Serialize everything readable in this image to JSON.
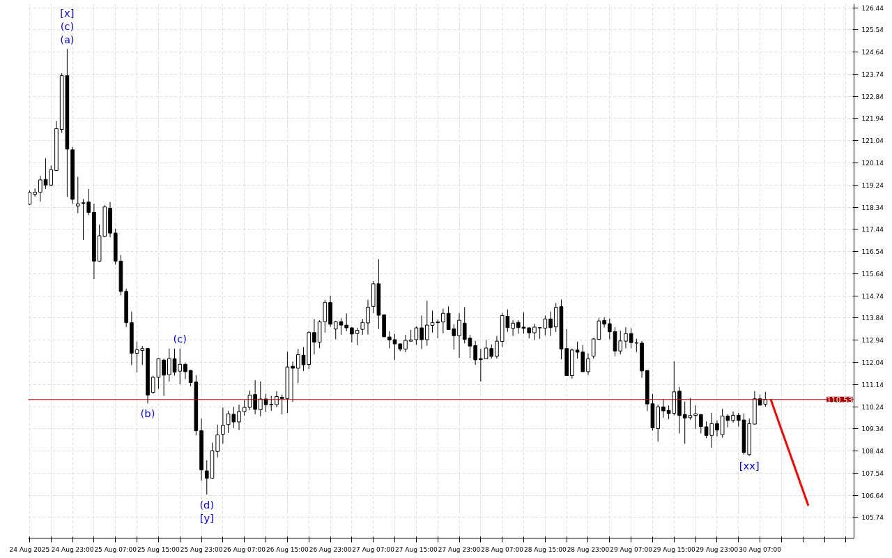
{
  "chart_data": {
    "type": "candlestick",
    "x": [
      "2025-08-24T15:00",
      "2025-08-24T16:00",
      "2025-08-24T17:00",
      "2025-08-24T18:00",
      "2025-08-24T19:00",
      "2025-08-24T20:00",
      "2025-08-24T21:00",
      "2025-08-24T22:00",
      "2025-08-24T23:00",
      "2025-08-25T00:00",
      "2025-08-25T01:00",
      "2025-08-25T02:00",
      "2025-08-25T03:00",
      "2025-08-25T04:00",
      "2025-08-25T05:00",
      "2025-08-25T06:00",
      "2025-08-25T07:00",
      "2025-08-25T08:00",
      "2025-08-25T09:00",
      "2025-08-25T10:00",
      "2025-08-25T11:00",
      "2025-08-25T12:00",
      "2025-08-25T13:00",
      "2025-08-25T14:00",
      "2025-08-25T15:00",
      "2025-08-25T16:00",
      "2025-08-25T17:00",
      "2025-08-25T18:00",
      "2025-08-25T19:00",
      "2025-08-25T20:00",
      "2025-08-25T21:00",
      "2025-08-25T22:00",
      "2025-08-25T23:00",
      "2025-08-26T00:00",
      "2025-08-26T01:00",
      "2025-08-26T02:00",
      "2025-08-26T03:00",
      "2025-08-26T04:00",
      "2025-08-26T05:00",
      "2025-08-26T06:00",
      "2025-08-26T07:00",
      "2025-08-26T08:00",
      "2025-08-26T09:00",
      "2025-08-26T10:00",
      "2025-08-26T11:00",
      "2025-08-26T12:00",
      "2025-08-26T13:00",
      "2025-08-26T14:00",
      "2025-08-26T15:00",
      "2025-08-26T16:00",
      "2025-08-26T17:00",
      "2025-08-26T18:00",
      "2025-08-26T19:00",
      "2025-08-26T20:00",
      "2025-08-26T21:00",
      "2025-08-26T22:00",
      "2025-08-26T23:00",
      "2025-08-27T00:00",
      "2025-08-27T01:00",
      "2025-08-27T02:00",
      "2025-08-27T03:00",
      "2025-08-27T04:00",
      "2025-08-27T05:00",
      "2025-08-27T06:00",
      "2025-08-27T07:00",
      "2025-08-27T08:00",
      "2025-08-27T09:00",
      "2025-08-27T10:00",
      "2025-08-27T11:00",
      "2025-08-27T12:00",
      "2025-08-27T13:00",
      "2025-08-27T14:00",
      "2025-08-27T15:00",
      "2025-08-27T16:00",
      "2025-08-27T17:00",
      "2025-08-27T18:00",
      "2025-08-27T19:00",
      "2025-08-27T20:00",
      "2025-08-27T21:00",
      "2025-08-27T22:00",
      "2025-08-27T23:00",
      "2025-08-28T00:00",
      "2025-08-28T01:00",
      "2025-08-28T02:00",
      "2025-08-28T03:00",
      "2025-08-28T04:00",
      "2025-08-28T05:00",
      "2025-08-28T06:00",
      "2025-08-28T07:00",
      "2025-08-28T08:00",
      "2025-08-28T09:00",
      "2025-08-28T10:00",
      "2025-08-28T11:00",
      "2025-08-28T12:00",
      "2025-08-28T13:00",
      "2025-08-28T14:00",
      "2025-08-28T15:00",
      "2025-08-28T16:00",
      "2025-08-28T17:00",
      "2025-08-28T18:00",
      "2025-08-28T19:00",
      "2025-08-28T20:00",
      "2025-08-28T21:00",
      "2025-08-28T22:00",
      "2025-08-28T23:00",
      "2025-08-29T00:00",
      "2025-08-29T01:00",
      "2025-08-29T02:00",
      "2025-08-29T03:00",
      "2025-08-29T04:00",
      "2025-08-29T05:00",
      "2025-08-29T06:00",
      "2025-08-29T07:00",
      "2025-08-29T08:00",
      "2025-08-29T09:00",
      "2025-08-29T10:00",
      "2025-08-29T11:00",
      "2025-08-29T12:00",
      "2025-08-29T13:00",
      "2025-08-29T14:00",
      "2025-08-29T15:00",
      "2025-08-29T16:00",
      "2025-08-29T17:00",
      "2025-08-29T18:00",
      "2025-08-29T19:00",
      "2025-08-29T20:00",
      "2025-08-29T21:00",
      "2025-08-29T22:00",
      "2025-08-29T23:00",
      "2025-08-30T00:00",
      "2025-08-30T01:00",
      "2025-08-30T02:00",
      "2025-08-30T03:00",
      "2025-08-30T04:00",
      "2025-08-30T05:00",
      "2025-08-30T06:00",
      "2025-08-30T07:00",
      "2025-08-30T08:00"
    ],
    "ohlc": [
      [
        118.46,
        119.02,
        118.43,
        118.94
      ],
      [
        118.86,
        119.1,
        118.77,
        118.95
      ],
      [
        118.95,
        119.61,
        118.57,
        119.45
      ],
      [
        119.47,
        120.33,
        119.08,
        119.24
      ],
      [
        119.24,
        120.03,
        119.19,
        119.86
      ],
      [
        119.83,
        121.84,
        119.83,
        121.53
      ],
      [
        121.5,
        123.78,
        121.36,
        123.68
      ],
      [
        123.68,
        124.77,
        118.76,
        120.7
      ],
      [
        120.67,
        120.78,
        118.48,
        118.66
      ],
      [
        118.39,
        119.58,
        118.1,
        118.48
      ],
      [
        118.52,
        118.67,
        117.01,
        118.5
      ],
      [
        118.55,
        119.08,
        118.02,
        118.13
      ],
      [
        118.13,
        118.48,
        115.42,
        116.15
      ],
      [
        116.15,
        117.64,
        116.12,
        117.18
      ],
      [
        117.15,
        118.43,
        117.12,
        118.35
      ],
      [
        118.3,
        118.56,
        117.12,
        117.29
      ],
      [
        117.29,
        117.47,
        116.01,
        116.15
      ],
      [
        116.15,
        116.4,
        114.76,
        114.92
      ],
      [
        114.92,
        115.03,
        113.47,
        113.65
      ],
      [
        113.65,
        114.1,
        111.93,
        112.41
      ],
      [
        112.41,
        112.88,
        111.63,
        112.55
      ],
      [
        112.52,
        112.7,
        111.93,
        112.6
      ],
      [
        112.6,
        112.6,
        110.37,
        110.71
      ],
      [
        110.82,
        111.5,
        110.76,
        111.43
      ],
      [
        111.43,
        112.21,
        110.96,
        112.19
      ],
      [
        112.13,
        112.19,
        110.68,
        111.52
      ],
      [
        111.54,
        112.6,
        111.26,
        112.19
      ],
      [
        112.19,
        112.6,
        111.5,
        111.64
      ],
      [
        111.68,
        112.6,
        111.15,
        111.96
      ],
      [
        111.96,
        112.02,
        111.36,
        111.66
      ],
      [
        111.71,
        111.73,
        111.07,
        111.22
      ],
      [
        111.24,
        111.52,
        109.07,
        109.26
      ],
      [
        109.26,
        109.76,
        107.23,
        107.67
      ],
      [
        107.63,
        108.06,
        106.67,
        107.33
      ],
      [
        107.33,
        108.78,
        107.3,
        108.45
      ],
      [
        108.42,
        109.51,
        108.18,
        109.09
      ],
      [
        109.12,
        110.2,
        108.73,
        109.48
      ],
      [
        109.51,
        110.07,
        109.17,
        109.95
      ],
      [
        109.93,
        110.23,
        109.37,
        109.62
      ],
      [
        109.62,
        110.32,
        109.29,
        110.04
      ],
      [
        110.04,
        110.51,
        109.87,
        110.21
      ],
      [
        110.21,
        110.9,
        110.1,
        110.71
      ],
      [
        110.73,
        111.32,
        109.93,
        110.13
      ],
      [
        110.11,
        111.26,
        109.85,
        110.55
      ],
      [
        110.55,
        110.76,
        110.02,
        110.32
      ],
      [
        110.33,
        110.68,
        110.07,
        110.31
      ],
      [
        110.32,
        110.87,
        110.21,
        110.65
      ],
      [
        110.62,
        110.73,
        109.93,
        110.57
      ],
      [
        110.57,
        112.47,
        109.98,
        111.85
      ],
      [
        111.88,
        112.07,
        110.43,
        111.8
      ],
      [
        111.8,
        112.58,
        111.19,
        112.35
      ],
      [
        112.33,
        112.66,
        111.69,
        111.94
      ],
      [
        111.95,
        113.31,
        111.77,
        113.25
      ],
      [
        113.25,
        113.8,
        112.36,
        112.86
      ],
      [
        112.86,
        113.75,
        112.61,
        113.69
      ],
      [
        113.69,
        114.58,
        113.25,
        114.47
      ],
      [
        114.47,
        114.75,
        113.48,
        113.59
      ],
      [
        113.39,
        113.72,
        112.97,
        113.69
      ],
      [
        113.69,
        113.83,
        113.16,
        113.55
      ],
      [
        113.55,
        114.03,
        113.3,
        113.44
      ],
      [
        113.44,
        113.47,
        112.85,
        113.19
      ],
      [
        113.21,
        113.44,
        112.74,
        113.34
      ],
      [
        113.38,
        113.8,
        113.16,
        113.66
      ],
      [
        113.64,
        114.58,
        113.17,
        114.28
      ],
      [
        114.31,
        115.34,
        114.04,
        115.23
      ],
      [
        115.23,
        116.23,
        113.39,
        113.95
      ],
      [
        113.97,
        113.98,
        113.06,
        113.08
      ],
      [
        113.07,
        113.3,
        112.61,
        112.95
      ],
      [
        112.96,
        113.19,
        112.14,
        112.79
      ],
      [
        112.79,
        112.81,
        112.49,
        112.58
      ],
      [
        112.58,
        113.16,
        112.45,
        112.93
      ],
      [
        112.9,
        113.36,
        112.89,
        112.95
      ],
      [
        112.96,
        113.5,
        112.75,
        113.44
      ],
      [
        113.44,
        113.94,
        112.58,
        112.96
      ],
      [
        112.96,
        114.54,
        112.72,
        113.55
      ],
      [
        113.54,
        114.14,
        113.25,
        113.66
      ],
      [
        113.68,
        113.78,
        113.02,
        113.65
      ],
      [
        113.68,
        114.22,
        113.22,
        114.03
      ],
      [
        114.03,
        114.31,
        113.37,
        113.37
      ],
      [
        113.4,
        113.58,
        112.56,
        113.12
      ],
      [
        113.12,
        114.04,
        112.22,
        113.75
      ],
      [
        113.63,
        114.28,
        112.81,
        112.97
      ],
      [
        113.02,
        113.16,
        112.22,
        112.7
      ],
      [
        112.72,
        112.91,
        111.94,
        112.14
      ],
      [
        112.19,
        112.59,
        111.26,
        112.15
      ],
      [
        112.18,
        112.95,
        112.18,
        112.62
      ],
      [
        112.6,
        112.77,
        112.19,
        112.28
      ],
      [
        112.28,
        113.11,
        112.19,
        112.9
      ],
      [
        112.89,
        114.05,
        112.66,
        113.94
      ],
      [
        113.91,
        114.19,
        113.28,
        113.45
      ],
      [
        113.42,
        113.75,
        113.11,
        113.63
      ],
      [
        113.66,
        113.75,
        113.2,
        113.45
      ],
      [
        113.47,
        114.07,
        113.2,
        113.42
      ],
      [
        113.44,
        113.47,
        113.01,
        113.24
      ],
      [
        113.24,
        113.61,
        112.94,
        113.47
      ],
      [
        113.45,
        113.47,
        112.99,
        113.44
      ],
      [
        113.43,
        113.94,
        113.14,
        113.8
      ],
      [
        113.8,
        114.1,
        113.11,
        113.45
      ],
      [
        113.48,
        114.45,
        113.27,
        114.27
      ],
      [
        114.3,
        114.59,
        112.16,
        112.58
      ],
      [
        112.6,
        113.39,
        111.5,
        111.5
      ],
      [
        111.5,
        112.6,
        111.38,
        112.54
      ],
      [
        112.54,
        112.88,
        112.19,
        112.45
      ],
      [
        112.46,
        112.74,
        111.66,
        111.66
      ],
      [
        111.66,
        112.41,
        111.53,
        112.18
      ],
      [
        112.29,
        113.03,
        112.19,
        112.99
      ],
      [
        112.97,
        113.85,
        112.97,
        113.72
      ],
      [
        113.74,
        113.87,
        113.45,
        113.59
      ],
      [
        113.61,
        113.82,
        112.97,
        113.28
      ],
      [
        113.29,
        113.47,
        112.28,
        112.5
      ],
      [
        112.5,
        113.33,
        112.36,
        112.91
      ],
      [
        112.9,
        113.47,
        112.61,
        113.21
      ],
      [
        113.21,
        113.43,
        112.61,
        112.84
      ],
      [
        112.83,
        112.99,
        112.46,
        112.82
      ],
      [
        112.82,
        112.91,
        111.41,
        111.69
      ],
      [
        111.71,
        111.71,
        110.06,
        110.35
      ],
      [
        110.36,
        110.76,
        109.27,
        109.38
      ],
      [
        109.35,
        110.32,
        108.82,
        110.23
      ],
      [
        110.23,
        110.54,
        109.79,
        110.07
      ],
      [
        110.09,
        110.29,
        109.73,
        109.96
      ],
      [
        109.97,
        112.08,
        109.89,
        110.84
      ],
      [
        110.87,
        111.04,
        109.15,
        109.88
      ],
      [
        109.92,
        110.45,
        108.73,
        109.78
      ],
      [
        109.79,
        110.59,
        109.71,
        109.88
      ],
      [
        109.88,
        110.29,
        109.34,
        109.95
      ],
      [
        109.92,
        109.92,
        109.15,
        109.43
      ],
      [
        109.42,
        109.64,
        108.96,
        109.07
      ],
      [
        109.07,
        109.99,
        108.57,
        109.55
      ],
      [
        109.55,
        109.68,
        109.03,
        109.29
      ],
      [
        109.1,
        110.15,
        108.98,
        109.86
      ],
      [
        109.86,
        109.93,
        109.4,
        109.68
      ],
      [
        109.68,
        110.04,
        109.59,
        109.89
      ],
      [
        109.89,
        109.99,
        109.43,
        109.68
      ],
      [
        109.7,
        109.96,
        108.29,
        108.38
      ],
      [
        108.29,
        109.76,
        108.24,
        109.55
      ],
      [
        109.53,
        110.87,
        109.53,
        110.56
      ],
      [
        110.56,
        110.73,
        110.3,
        110.3
      ],
      [
        110.34,
        110.84,
        110.24,
        110.53
      ]
    ],
    "series": [
      {
        "type": "line",
        "color": "#ff0000",
        "x": [
          "2025-08-30T09:00",
          "2025-08-30T16:00"
        ],
        "values": [
          110.53,
          106.22
        ]
      }
    ],
    "xlim": [
      "2025-08-24T14:45",
      "2025-08-31T00:30"
    ],
    "xticks": [
      {
        "value": "2025-08-24T15:00",
        "label": "24 Aug 2025"
      },
      {
        "value": "2025-08-24T19:00",
        "label": null
      },
      {
        "value": "2025-08-24T23:00",
        "label": "24 Aug 23:00"
      },
      {
        "value": "2025-08-25T03:00",
        "label": null
      },
      {
        "value": "2025-08-25T07:00",
        "label": "25 Aug 07:00"
      },
      {
        "value": "2025-08-25T11:00",
        "label": null
      },
      {
        "value": "2025-08-25T15:00",
        "label": "25 Aug 15:00"
      },
      {
        "value": "2025-08-25T19:00",
        "label": null
      },
      {
        "value": "2025-08-25T23:00",
        "label": "25 Aug 23:00"
      },
      {
        "value": "2025-08-26T03:00",
        "label": null
      },
      {
        "value": "2025-08-26T07:00",
        "label": "26 Aug 07:00"
      },
      {
        "value": "2025-08-26T11:00",
        "label": null
      },
      {
        "value": "2025-08-26T15:00",
        "label": "26 Aug 15:00"
      },
      {
        "value": "2025-08-26T19:00",
        "label": null
      },
      {
        "value": "2025-08-26T23:00",
        "label": "26 Aug 23:00"
      },
      {
        "value": "2025-08-27T03:00",
        "label": null
      },
      {
        "value": "2025-08-27T07:00",
        "label": "27 Aug 07:00"
      },
      {
        "value": "2025-08-27T11:00",
        "label": null
      },
      {
        "value": "2025-08-27T15:00",
        "label": "27 Aug 15:00"
      },
      {
        "value": "2025-08-27T19:00",
        "label": null
      },
      {
        "value": "2025-08-27T23:00",
        "label": "27 Aug 23:00"
      },
      {
        "value": "2025-08-28T03:00",
        "label": null
      },
      {
        "value": "2025-08-28T07:00",
        "label": "28 Aug 07:00"
      },
      {
        "value": "2025-08-28T11:00",
        "label": null
      },
      {
        "value": "2025-08-28T15:00",
        "label": "28 Aug 15:00"
      },
      {
        "value": "2025-08-28T19:00",
        "label": null
      },
      {
        "value": "2025-08-28T23:00",
        "label": "28 Aug 23:00"
      },
      {
        "value": "2025-08-29T03:00",
        "label": null
      },
      {
        "value": "2025-08-29T07:00",
        "label": "29 Aug 07:00"
      },
      {
        "value": "2025-08-29T11:00",
        "label": null
      },
      {
        "value": "2025-08-29T15:00",
        "label": "29 Aug 15:00"
      },
      {
        "value": "2025-08-29T19:00",
        "label": null
      },
      {
        "value": "2025-08-29T23:00",
        "label": "29 Aug 23:00"
      },
      {
        "value": "2025-08-30T03:00",
        "label": null
      },
      {
        "value": "2025-08-30T07:00",
        "label": "30 Aug 07:00"
      },
      {
        "value": "2025-08-30T11:00",
        "label": null
      },
      {
        "value": "2025-08-30T15:00",
        "label": null
      },
      {
        "value": "2025-08-30T19:00",
        "label": null
      },
      {
        "value": "2025-08-30T23:00",
        "label": null
      }
    ],
    "ylim": [
      104.9,
      126.6
    ],
    "yticks": [
      105.74,
      106.64,
      107.54,
      108.44,
      109.34,
      110.24,
      111.14,
      112.04,
      112.94,
      113.84,
      114.74,
      115.64,
      116.54,
      117.44,
      118.34,
      119.24,
      120.14,
      121.04,
      121.94,
      122.84,
      123.74,
      124.64,
      125.54,
      126.44
    ],
    "grid": true,
    "ref_lines": [
      {
        "axis": "y",
        "value": 110.53,
        "label": "110.53",
        "color": "#b00000"
      }
    ],
    "annotations": [
      {
        "text": "[x]",
        "x": "2025-08-24T22:00",
        "y": 124.77
      },
      {
        "text": "(c)",
        "x": "2025-08-24T22:00",
        "y": 124.77
      },
      {
        "text": "(a)",
        "x": "2025-08-24T22:00",
        "y": 124.77
      },
      {
        "text": "(b)",
        "x": "2025-08-25T13:00",
        "y": 110.37
      },
      {
        "text": "(c)",
        "x": "2025-08-25T19:00",
        "y": 112.6
      },
      {
        "text": "(d)",
        "x": "2025-08-26T00:00",
        "y": 106.67
      },
      {
        "text": "[y]",
        "x": "2025-08-26T00:00",
        "y": 106.67
      },
      {
        "text": "[xx]",
        "x": "2025-08-30T05:00",
        "y": 108.24
      }
    ]
  }
}
